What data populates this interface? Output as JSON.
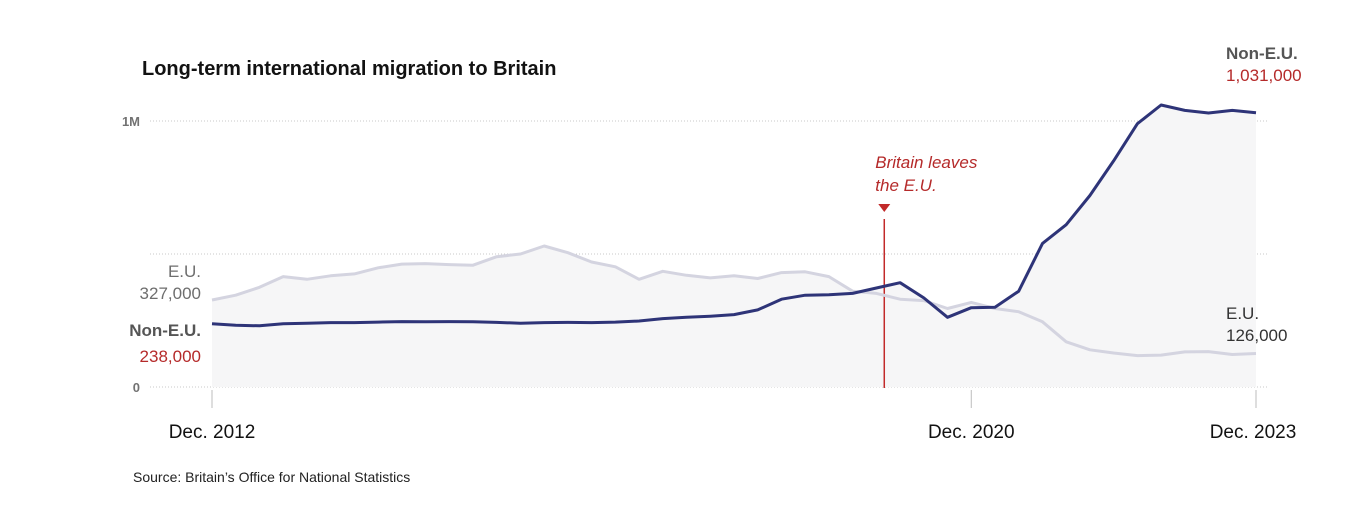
{
  "chart_data": {
    "type": "line",
    "title": "Long-term international migration to Britain",
    "x": [
      "2012-12",
      "2013-03",
      "2013-06",
      "2013-09",
      "2013-12",
      "2014-03",
      "2014-06",
      "2014-09",
      "2014-12",
      "2015-03",
      "2015-06",
      "2015-09",
      "2015-12",
      "2016-03",
      "2016-06",
      "2016-09",
      "2016-12",
      "2017-03",
      "2017-06",
      "2017-09",
      "2017-12",
      "2018-03",
      "2018-06",
      "2018-09",
      "2018-12",
      "2019-03",
      "2019-06",
      "2019-09",
      "2019-12",
      "2020-03",
      "2020-06",
      "2020-09",
      "2020-12",
      "2021-03",
      "2021-06",
      "2021-09",
      "2021-12",
      "2022-03",
      "2022-06",
      "2022-09",
      "2022-12",
      "2023-03",
      "2023-06",
      "2023-09",
      "2023-12"
    ],
    "series": [
      {
        "name": "E.U.",
        "color": "#d4d4e0",
        "values": [
          327000,
          345000,
          375000,
          415000,
          405000,
          418000,
          425000,
          448000,
          462000,
          464000,
          460000,
          458000,
          490000,
          500000,
          530000,
          505000,
          470000,
          452000,
          405000,
          435000,
          420000,
          410000,
          418000,
          408000,
          430000,
          433000,
          415000,
          360000,
          352000,
          330000,
          325000,
          295000,
          318000,
          295000,
          283000,
          245000,
          170000,
          140000,
          128000,
          118000,
          120000,
          132000,
          133000,
          122000,
          126000
        ]
      },
      {
        "name": "Non-E.U.",
        "color": "#2e3478",
        "values": [
          238000,
          232000,
          230000,
          238000,
          240000,
          242000,
          242000,
          244000,
          246000,
          245000,
          246000,
          245000,
          243000,
          240000,
          242000,
          243000,
          242000,
          244000,
          248000,
          257000,
          262000,
          266000,
          272000,
          290000,
          330000,
          345000,
          347000,
          352000,
          372000,
          392000,
          335000,
          262000,
          298000,
          300000,
          360000,
          540000,
          610000,
          720000,
          850000,
          990000,
          1060000,
          1040000,
          1030000,
          1040000,
          1031000
        ]
      }
    ],
    "ylim": [
      0,
      1000000
    ],
    "y_ticks": [
      "0",
      "1M"
    ],
    "x_ticks": [
      {
        "label": "Dec. 2012",
        "x": "2012-12"
      },
      {
        "label": "Dec. 2020",
        "x": "2020-12"
      },
      {
        "label": "Dec. 2023",
        "x": "2023-12"
      }
    ],
    "grid": true,
    "annotation": {
      "line1": "Britain leaves",
      "line2": "the E.U.",
      "x": "2020-01"
    },
    "start_labels": {
      "eu_name": "E.U.",
      "eu_value": "327,000",
      "noneu_name": "Non-E.U.",
      "noneu_value": "238,000"
    },
    "end_labels": {
      "noneu_name": "Non-E.U.",
      "noneu_value": "1,031,000",
      "eu_name": "E.U.",
      "eu_value": "126,000"
    },
    "source": "Source: Britain’s Office for National Statistics"
  }
}
